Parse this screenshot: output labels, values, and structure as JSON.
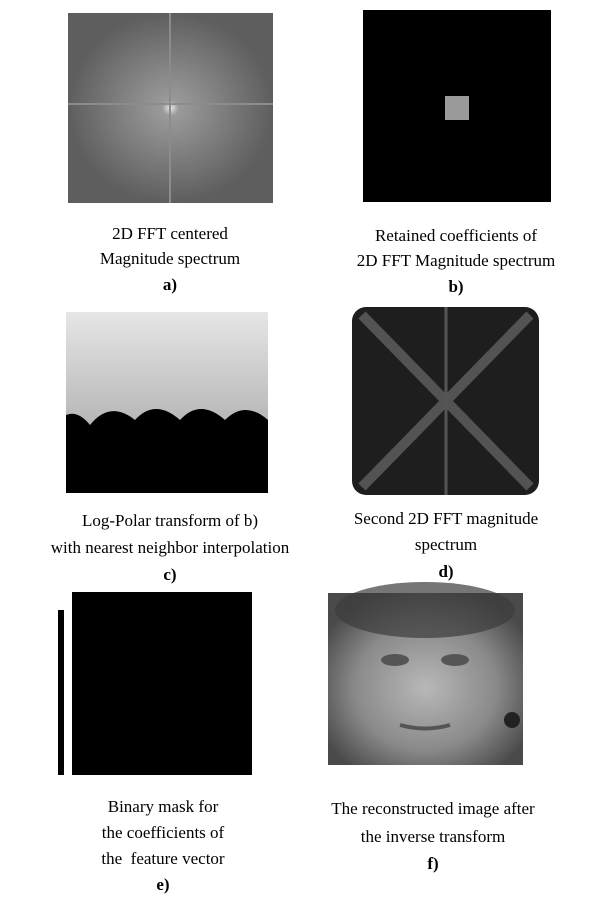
{
  "panels": [
    {
      "caption": [
        "2D FFT centered",
        "Magnitude spectrum"
      ],
      "label": "a)"
    },
    {
      "caption": [
        "Retained coefficients of",
        "2D FFT Magnitude spectrum"
      ],
      "label": "b)"
    },
    {
      "caption": [
        "Log-Polar transform of b)",
        "with nearest neighbor interpolation"
      ],
      "label": "c)"
    },
    {
      "caption": [
        "Second 2D FFT magnitude",
        "spectrum"
      ],
      "label": "d)"
    },
    {
      "caption": [
        "Binary mask for",
        "the coefficients of",
        "the  feature vector"
      ],
      "label": "e)"
    },
    {
      "caption": [
        "The reconstructed image after",
        "the inverse transform"
      ],
      "label": "f)"
    }
  ]
}
